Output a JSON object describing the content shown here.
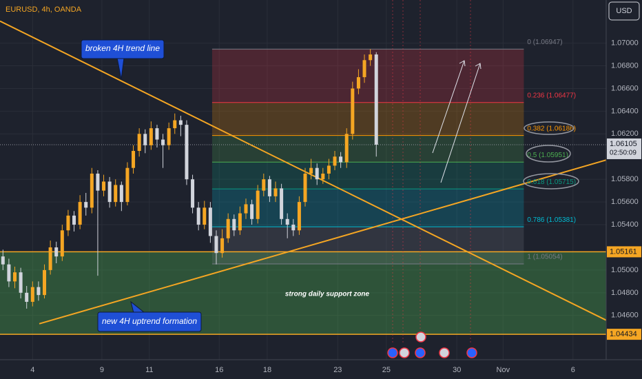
{
  "chart_data": {
    "type": "candlestick",
    "title": "EURUSD, 4h, OANDA",
    "currency": "USD",
    "up_color": "#f5a623",
    "down_color": "#d1d4dc",
    "open": [
      1.0512,
      1.0505,
      1.049,
      1.0498,
      1.048,
      1.0472,
      1.0485,
      1.0478,
      1.05,
      1.052,
      1.0512,
      1.0535,
      1.0548,
      1.054,
      1.056,
      1.0555,
      1.0585,
      1.057,
      1.0578,
      1.056,
      1.0575,
      1.056,
      1.059,
      1.0605,
      1.062,
      1.061,
      1.0625,
      1.0615,
      1.061,
      1.0625,
      1.0632,
      1.0628,
      1.058,
      1.0555,
      1.054,
      1.0555,
      1.053,
      1.0515,
      1.0528,
      1.0545,
      1.0535,
      1.055,
      1.0558,
      1.0545,
      1.057,
      1.058,
      1.0565,
      1.0572,
      1.0545,
      1.054,
      1.0535,
      1.056,
      1.0585,
      1.059,
      1.058,
      1.0585,
      1.0592,
      1.06,
      1.0595,
      1.062,
      1.066,
      1.067,
      1.0685,
      1.069
    ],
    "high": [
      1.0518,
      1.051,
      1.0503,
      1.0502,
      1.0486,
      1.049,
      1.049,
      1.0505,
      1.0526,
      1.0525,
      1.054,
      1.0553,
      1.0552,
      1.0566,
      1.0568,
      1.059,
      1.0588,
      1.0584,
      1.0582,
      1.058,
      1.0578,
      1.0595,
      1.061,
      1.0625,
      1.0624,
      1.0631,
      1.0628,
      1.062,
      1.063,
      1.0638,
      1.0636,
      1.0632,
      1.0584,
      1.056,
      1.0561,
      1.056,
      1.0535,
      1.0536,
      1.055,
      1.0549,
      1.0556,
      1.0563,
      1.0562,
      1.0575,
      1.0585,
      1.0583,
      1.0578,
      1.0576,
      1.055,
      1.0545,
      1.0565,
      1.059,
      1.0598,
      1.0594,
      1.059,
      1.0598,
      1.0605,
      1.0604,
      1.0625,
      1.0666,
      1.0677,
      1.069,
      1.06947,
      1.0692
    ],
    "low": [
      1.05,
      1.0485,
      1.0484,
      1.0475,
      1.0466,
      1.0468,
      1.0473,
      1.0475,
      1.0496,
      1.0506,
      1.0508,
      1.053,
      1.0534,
      1.0536,
      1.0548,
      1.055,
      1.0495,
      1.0565,
      1.0555,
      1.0556,
      1.0552,
      1.0557,
      1.0585,
      1.06,
      1.0603,
      1.0606,
      1.0608,
      1.059,
      1.0606,
      1.062,
      1.0618,
      1.0575,
      1.055,
      1.0535,
      1.0536,
      1.0524,
      1.0505,
      1.0511,
      1.0524,
      1.053,
      1.0531,
      1.0545,
      1.054,
      1.0541,
      1.0565,
      1.056,
      1.056,
      1.054,
      1.0528,
      1.053,
      1.0531,
      1.0556,
      1.058,
      1.0575,
      1.0576,
      1.058,
      1.0588,
      1.059,
      1.059,
      1.0615,
      1.0655,
      1.0665,
      1.068,
      1.06
    ],
    "close": [
      1.0505,
      1.049,
      1.0498,
      1.048,
      1.0472,
      1.0485,
      1.0478,
      1.05,
      1.052,
      1.0512,
      1.0535,
      1.0548,
      1.054,
      1.056,
      1.0555,
      1.0585,
      1.057,
      1.0578,
      1.056,
      1.0575,
      1.056,
      1.059,
      1.0605,
      1.062,
      1.061,
      1.0625,
      1.0615,
      1.061,
      1.0625,
      1.0632,
      1.0628,
      1.058,
      1.0555,
      1.054,
      1.0555,
      1.053,
      1.0515,
      1.0528,
      1.0545,
      1.0535,
      1.055,
      1.0558,
      1.0545,
      1.057,
      1.058,
      1.0565,
      1.0572,
      1.0545,
      1.054,
      1.0535,
      1.056,
      1.0585,
      1.059,
      1.058,
      1.0585,
      1.0592,
      1.06,
      1.0595,
      1.062,
      1.066,
      1.067,
      1.0685,
      1.069,
      1.06105
    ],
    "xlim": [
      -0.5,
      101.8
    ],
    "ylim": [
      1.0421,
      1.0738
    ],
    "xticks": [
      {
        "value": 5,
        "label": "4"
      },
      {
        "value": 16.7,
        "label": "9"
      },
      {
        "value": 24.7,
        "label": "11"
      },
      {
        "value": 36.5,
        "label": "16"
      },
      {
        "value": 44.6,
        "label": "18"
      },
      {
        "value": 56.5,
        "label": "23"
      },
      {
        "value": 64.7,
        "label": "25"
      },
      {
        "value": 76.6,
        "label": "30"
      },
      {
        "value": 84.4,
        "label": "Nov"
      },
      {
        "value": 96.2,
        "label": "6"
      }
    ],
    "yticks": [
      {
        "value": 1.07,
        "label": "1.07000"
      },
      {
        "value": 1.068,
        "label": "1.06800"
      },
      {
        "value": 1.066,
        "label": "1.06600"
      },
      {
        "value": 1.064,
        "label": "1.06400"
      },
      {
        "value": 1.062,
        "label": "1.06200"
      },
      {
        "value": 1.058,
        "label": "1.05800"
      },
      {
        "value": 1.056,
        "label": "1.05600"
      },
      {
        "value": 1.054,
        "label": "1.05400"
      },
      {
        "value": 1.05,
        "label": "1.05000"
      },
      {
        "value": 1.048,
        "label": "1.04800"
      },
      {
        "value": 1.046,
        "label": "1.04600"
      }
    ],
    "last_price": {
      "value": 1.06105,
      "label": "1.06105"
    },
    "countdown": "02:50:09",
    "support_zone": {
      "label": "strong daily support zone",
      "top": {
        "value": 1.05161,
        "label": "1.05161"
      },
      "bottom": {
        "value": 1.04434,
        "label": "1.04434"
      },
      "color": "#f5a623"
    },
    "fib": {
      "x_start": 35.3,
      "x_end": 87.9,
      "levels": [
        {
          "price": 1.06947,
          "label": "0 (1.06947)",
          "color": "#787b86"
        },
        {
          "price": 1.06477,
          "label": "0.236 (1.06477)",
          "color": "#f23645"
        },
        {
          "price": 1.06186,
          "label": "0.382 (1.06186)",
          "color": "#ff9800"
        },
        {
          "price": 1.05951,
          "label": "0.5 (1.05951)",
          "color": "#4caf50"
        },
        {
          "price": 1.05715,
          "label": "0.618 (1.05715)",
          "color": "#089981"
        },
        {
          "price": 1.05381,
          "label": "0.786 (1.05381)",
          "color": "#00bcd4"
        },
        {
          "price": 1.05054,
          "label": "1 (1.05054)",
          "color": "#787b86"
        }
      ]
    },
    "trend_lines": [
      {
        "x": [
          -0.5,
          101.8
        ],
        "y": [
          1.07194,
          1.04558
        ],
        "color": "#f5a623"
      },
      {
        "x": [
          6.13,
          101.8
        ],
        "y": [
          1.04527,
          1.0597
        ],
        "color": "#f5a623"
      }
    ],
    "annotations": [
      "broken 4H trend line",
      "new 4H uptrend formation"
    ]
  }
}
